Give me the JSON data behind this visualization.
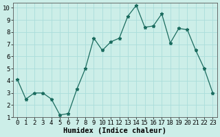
{
  "x": [
    0,
    1,
    2,
    3,
    4,
    5,
    6,
    7,
    8,
    9,
    10,
    11,
    12,
    13,
    14,
    15,
    16,
    17,
    18,
    19,
    20,
    21,
    22,
    23
  ],
  "y": [
    4.1,
    2.5,
    3.0,
    3.0,
    2.5,
    1.2,
    1.3,
    3.3,
    5.0,
    7.5,
    6.5,
    7.2,
    7.5,
    9.3,
    10.2,
    8.4,
    8.5,
    9.5,
    7.1,
    8.3,
    8.2,
    6.5,
    5.0,
    3.0
  ],
  "xlabel": "Humidex (Indice chaleur)",
  "xlim": [
    -0.5,
    23.5
  ],
  "ylim": [
    1,
    10.4
  ],
  "yticks": [
    1,
    2,
    3,
    4,
    5,
    6,
    7,
    8,
    9,
    10
  ],
  "xticks": [
    0,
    1,
    2,
    3,
    4,
    5,
    6,
    7,
    8,
    9,
    10,
    11,
    12,
    13,
    14,
    15,
    16,
    17,
    18,
    19,
    20,
    21,
    22,
    23
  ],
  "line_color": "#1a6b5e",
  "marker": "*",
  "marker_size": 3.5,
  "bg_color": "#cceee8",
  "grid_color": "#aaddda",
  "xlabel_fontsize": 7.5,
  "tick_fontsize": 6.5
}
